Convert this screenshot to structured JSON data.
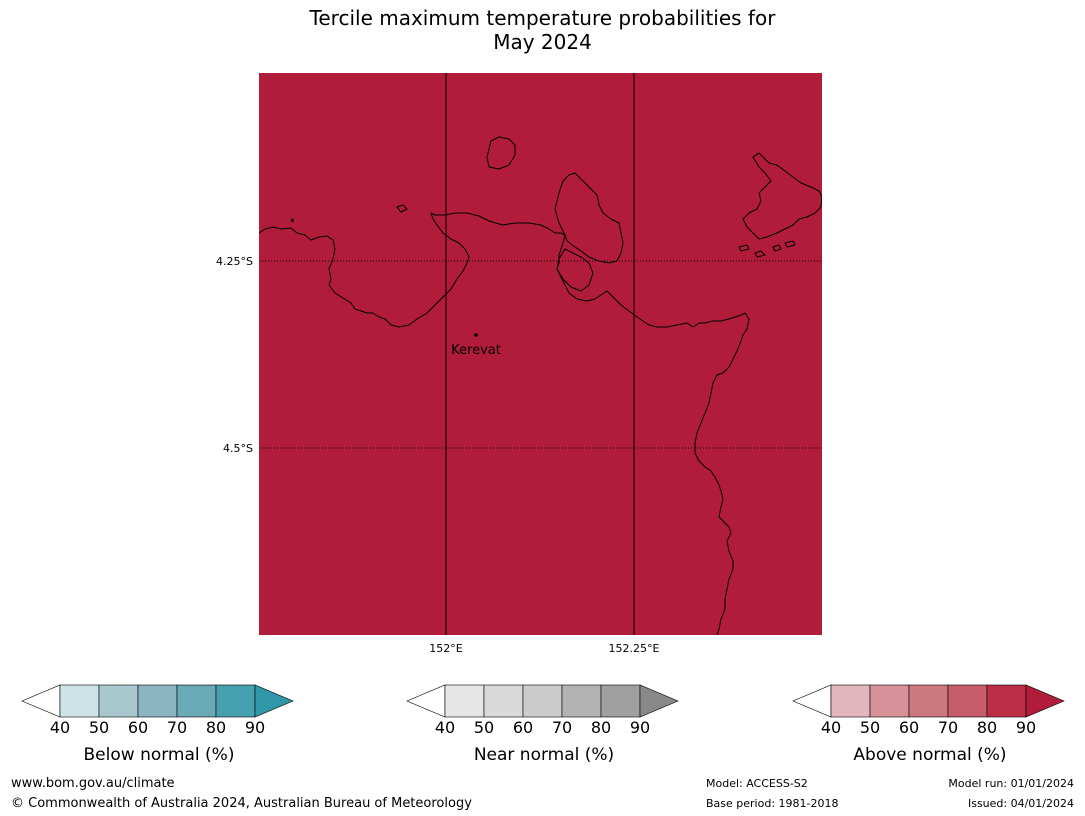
{
  "title": {
    "line1": "Tercile maximum temperature probabilities for",
    "line2": "May 2024"
  },
  "map": {
    "fill_color": "#b11c3a",
    "fill_category": "Above normal",
    "fill_range": "90",
    "lat_labels": [
      "4.25°S",
      "4.5°S"
    ],
    "lon_labels": [
      "152°E",
      "152.25°E"
    ],
    "towns": [
      {
        "name": "Kerevat"
      }
    ]
  },
  "legends": [
    {
      "title": "Below normal (%)",
      "ticks": [
        "40",
        "50",
        "60",
        "70",
        "80",
        "90"
      ],
      "colors": [
        "#ffffff",
        "#cde3e8",
        "#a9c8ce",
        "#8bb6c1",
        "#6aa9b6",
        "#46a0b0",
        "#2f97a8"
      ]
    },
    {
      "title": "Near normal (%)",
      "ticks": [
        "40",
        "50",
        "60",
        "70",
        "80",
        "90"
      ],
      "colors": [
        "#ffffff",
        "#e6e6e6",
        "#d9d9d9",
        "#cccccc",
        "#b3b3b3",
        "#a0a0a0",
        "#888888"
      ]
    },
    {
      "title": "Above normal (%)",
      "ticks": [
        "40",
        "50",
        "60",
        "70",
        "80",
        "90"
      ],
      "colors": [
        "#ffffff",
        "#e2b6bd",
        "#d79198",
        "#cd777f",
        "#c55d6a",
        "#bc2e46",
        "#b11c3a"
      ]
    }
  ],
  "footer": {
    "website": "www.bom.gov.au/climate",
    "copyright": "© Commonwealth of Australia 2024, Australian Bureau of Meteorology",
    "model": "Model: ACCESS-S2",
    "base_period": "Base period: 1981-2018",
    "model_run": "Model run: 01/01/2024",
    "issued": "Issued: 04/01/2024"
  }
}
